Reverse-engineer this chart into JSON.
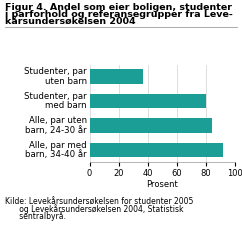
{
  "title_line1": "Figur 4. Andel som eier boligen, studenter",
  "title_line2": "i parforhold og referansegrupper fra Leve-",
  "title_line3": "kårsundersøkelsen 2004",
  "categories": [
    "Studenter, par\nuten barn",
    "Studenter, par\nmed barn",
    "Alle, par uten\nbarn, 24-30 år",
    "Alle, par med\nbarn, 34-40 år"
  ],
  "values": [
    37,
    80,
    84,
    92
  ],
  "bar_color": "#1a9e96",
  "xlabel": "Prosent",
  "xlim": [
    0,
    100
  ],
  "xticks": [
    0,
    20,
    40,
    60,
    80,
    100
  ],
  "source_line1": "Kilde: Levekårsundersøkelsen for studenter 2005",
  "source_line2": "      og Levekårsundersøkelsen 2004, Statistisk",
  "source_line3": "      sentralbyrå.",
  "title_fontsize": 6.8,
  "label_fontsize": 6.2,
  "tick_fontsize": 6.0,
  "source_fontsize": 5.5,
  "bg_color": "#ffffff"
}
